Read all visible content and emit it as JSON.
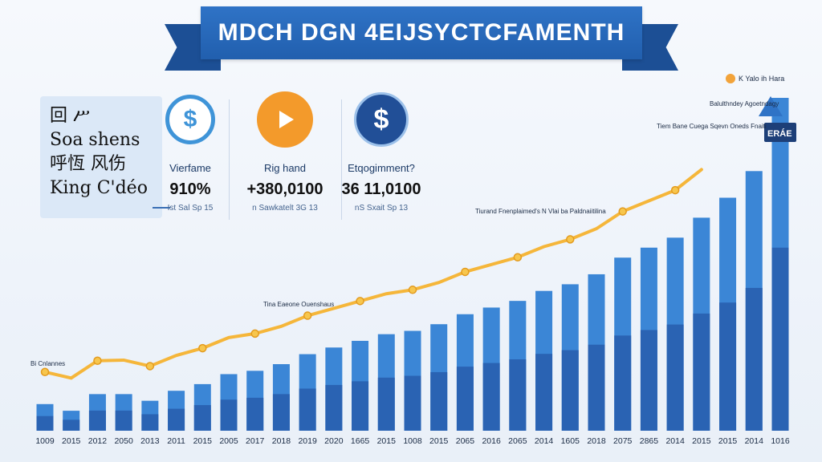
{
  "banner": {
    "title": "MDCH DGN 4EIJSYCTCFAMENTH"
  },
  "info_box": {
    "lines": [
      "回 ሥ",
      "Soa shens",
      "呼恆 风伤",
      "King C'déo"
    ]
  },
  "stats": [
    {
      "label": "Vierfame",
      "value": "910%",
      "sub": "Ist Sal Sp 15",
      "icon": "dollar-circle-icon",
      "color": "#3f94d8"
    },
    {
      "label": "Rig hand",
      "value": "+380,0100",
      "sub": "n Sawkatelt 3G 13",
      "icon": "play-icon",
      "color": "#f39a2b"
    },
    {
      "label": "Etqogimment?",
      "value": "36 11,0100",
      "sub": "nS Sxait Sp 13",
      "icon": "dollar-icon",
      "color": "#214f97"
    }
  ],
  "annotations": [
    {
      "text": "Bi Cnlannes"
    },
    {
      "text": "Tina Eaeone Ouenshaus"
    },
    {
      "text": "Tiurand Fnenplaimed's N Vlai ba Paldnaiitilina"
    },
    {
      "text": "Tiem Bane Cuega Sqevn Oneds Fnaiti"
    },
    {
      "text": "Balulthndey Agoetndagy"
    },
    {
      "text": "K Yalo ih Hara"
    },
    {
      "text": "ERÁE"
    }
  ],
  "chart_data": {
    "type": "bar",
    "categories": [
      "1009",
      "2015",
      "2012",
      "2050",
      "2013",
      "2011",
      "2015",
      "2005",
      "2017",
      "2018",
      "2019",
      "2020",
      "1665",
      "2015",
      "1008",
      "2015",
      "2065",
      "2016",
      "2065",
      "2014",
      "1605",
      "2018",
      "2075",
      "2865",
      "2014",
      "2015",
      "2015",
      "2014",
      "1016"
    ],
    "series": [
      {
        "values": [
          8,
          6,
          11,
          11,
          9,
          12,
          14,
          17,
          18,
          20,
          23,
          25,
          27,
          29,
          30,
          32,
          35,
          37,
          39,
          42,
          44,
          47,
          52,
          55,
          58,
          64,
          70,
          78,
          100
        ]
      }
    ],
    "ylim": [
      0,
      100
    ],
    "trend_line": true,
    "grid": false
  }
}
